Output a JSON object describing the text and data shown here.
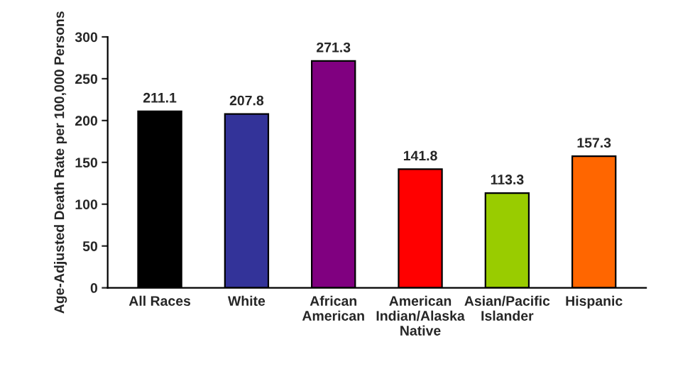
{
  "chart_data": {
    "type": "bar",
    "ylabel": "Age-Adjusted Death Rate per 100,000 Persons",
    "categories": [
      "All Races",
      "White",
      "African\nAmerican",
      "American\nIndian/Alaska\nNative",
      "Asian/Pacific\nIslander",
      "Hispanic"
    ],
    "values": [
      211.1,
      207.8,
      271.3,
      141.8,
      113.3,
      157.3
    ],
    "colors": [
      "#000000",
      "#333399",
      "#800080",
      "#ff0000",
      "#99cc00",
      "#ff6600"
    ],
    "ylim": [
      0,
      300
    ],
    "yticks": [
      0,
      50,
      100,
      150,
      200,
      250,
      300
    ],
    "data_labels": true,
    "grid": false,
    "legend": false
  }
}
